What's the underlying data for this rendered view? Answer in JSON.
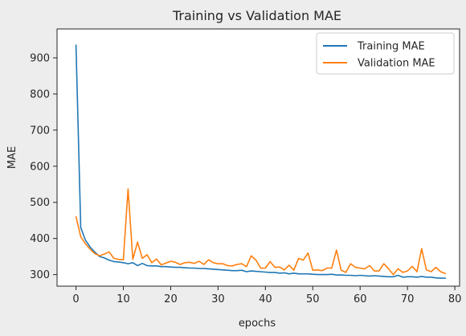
{
  "chart_data": {
    "type": "line",
    "title": "Training vs Validation MAE",
    "xlabel": "epochs",
    "ylabel": "MAE",
    "xlim": [
      -4,
      81
    ],
    "ylim": [
      268,
      980
    ],
    "xticks": [
      0,
      10,
      20,
      30,
      40,
      50,
      60,
      70,
      80
    ],
    "yticks": [
      300,
      400,
      500,
      600,
      700,
      800,
      900
    ],
    "grid": false,
    "legend_position": "top-right",
    "series": [
      {
        "name": "Training MAE",
        "color": "#1f77b4",
        "x": [
          0,
          1,
          2,
          3,
          4,
          5,
          6,
          7,
          8,
          9,
          10,
          11,
          12,
          13,
          14,
          15,
          16,
          17,
          18,
          19,
          20,
          21,
          22,
          23,
          24,
          25,
          26,
          27,
          28,
          29,
          30,
          31,
          32,
          33,
          34,
          35,
          36,
          37,
          38,
          39,
          40,
          41,
          42,
          43,
          44,
          45,
          46,
          47,
          48,
          49,
          50,
          51,
          52,
          53,
          54,
          55,
          56,
          57,
          58,
          59,
          60,
          61,
          62,
          63,
          64,
          65,
          66,
          67,
          68,
          69,
          70,
          71,
          72,
          73,
          74,
          75,
          76,
          77,
          78
        ],
        "values": [
          935,
          430,
          395,
          376,
          362,
          350,
          346,
          340,
          336,
          335,
          333,
          330,
          333,
          325,
          331,
          325,
          324,
          324,
          322,
          322,
          321,
          320,
          320,
          319,
          318,
          318,
          317,
          317,
          316,
          315,
          314,
          313,
          312,
          311,
          311,
          312,
          308,
          310,
          309,
          308,
          307,
          306,
          306,
          304,
          305,
          302,
          304,
          302,
          302,
          302,
          301,
          300,
          300,
          300,
          301,
          299,
          299,
          298,
          298,
          297,
          298,
          297,
          296,
          297,
          296,
          295,
          294,
          294,
          298,
          293,
          294,
          294,
          293,
          295,
          293,
          293,
          291,
          290,
          290
        ]
      },
      {
        "name": "Validation MAE",
        "color": "#ff7f0e",
        "x": [
          0,
          1,
          2,
          3,
          4,
          5,
          6,
          7,
          8,
          9,
          10,
          11,
          12,
          13,
          14,
          15,
          16,
          17,
          18,
          19,
          20,
          21,
          22,
          23,
          24,
          25,
          26,
          27,
          28,
          29,
          30,
          31,
          32,
          33,
          34,
          35,
          36,
          37,
          38,
          39,
          40,
          41,
          42,
          43,
          44,
          45,
          46,
          47,
          48,
          49,
          50,
          51,
          52,
          53,
          54,
          55,
          56,
          57,
          58,
          59,
          60,
          61,
          62,
          63,
          64,
          65,
          66,
          67,
          68,
          69,
          70,
          71,
          72,
          73,
          74,
          75,
          76,
          77,
          78
        ],
        "values": [
          460,
          405,
          385,
          370,
          358,
          352,
          357,
          363,
          345,
          342,
          341,
          537,
          342,
          390,
          345,
          355,
          333,
          343,
          327,
          332,
          337,
          334,
          328,
          333,
          334,
          331,
          337,
          328,
          341,
          333,
          330,
          330,
          325,
          324,
          328,
          330,
          322,
          352,
          340,
          318,
          318,
          336,
          320,
          321,
          313,
          326,
          312,
          345,
          340,
          360,
          312,
          313,
          311,
          318,
          318,
          368,
          312,
          306,
          330,
          320,
          318,
          316,
          325,
          310,
          310,
          330,
          316,
          300,
          316,
          306,
          310,
          323,
          308,
          372,
          313,
          308,
          320,
          308,
          303
        ]
      }
    ]
  }
}
